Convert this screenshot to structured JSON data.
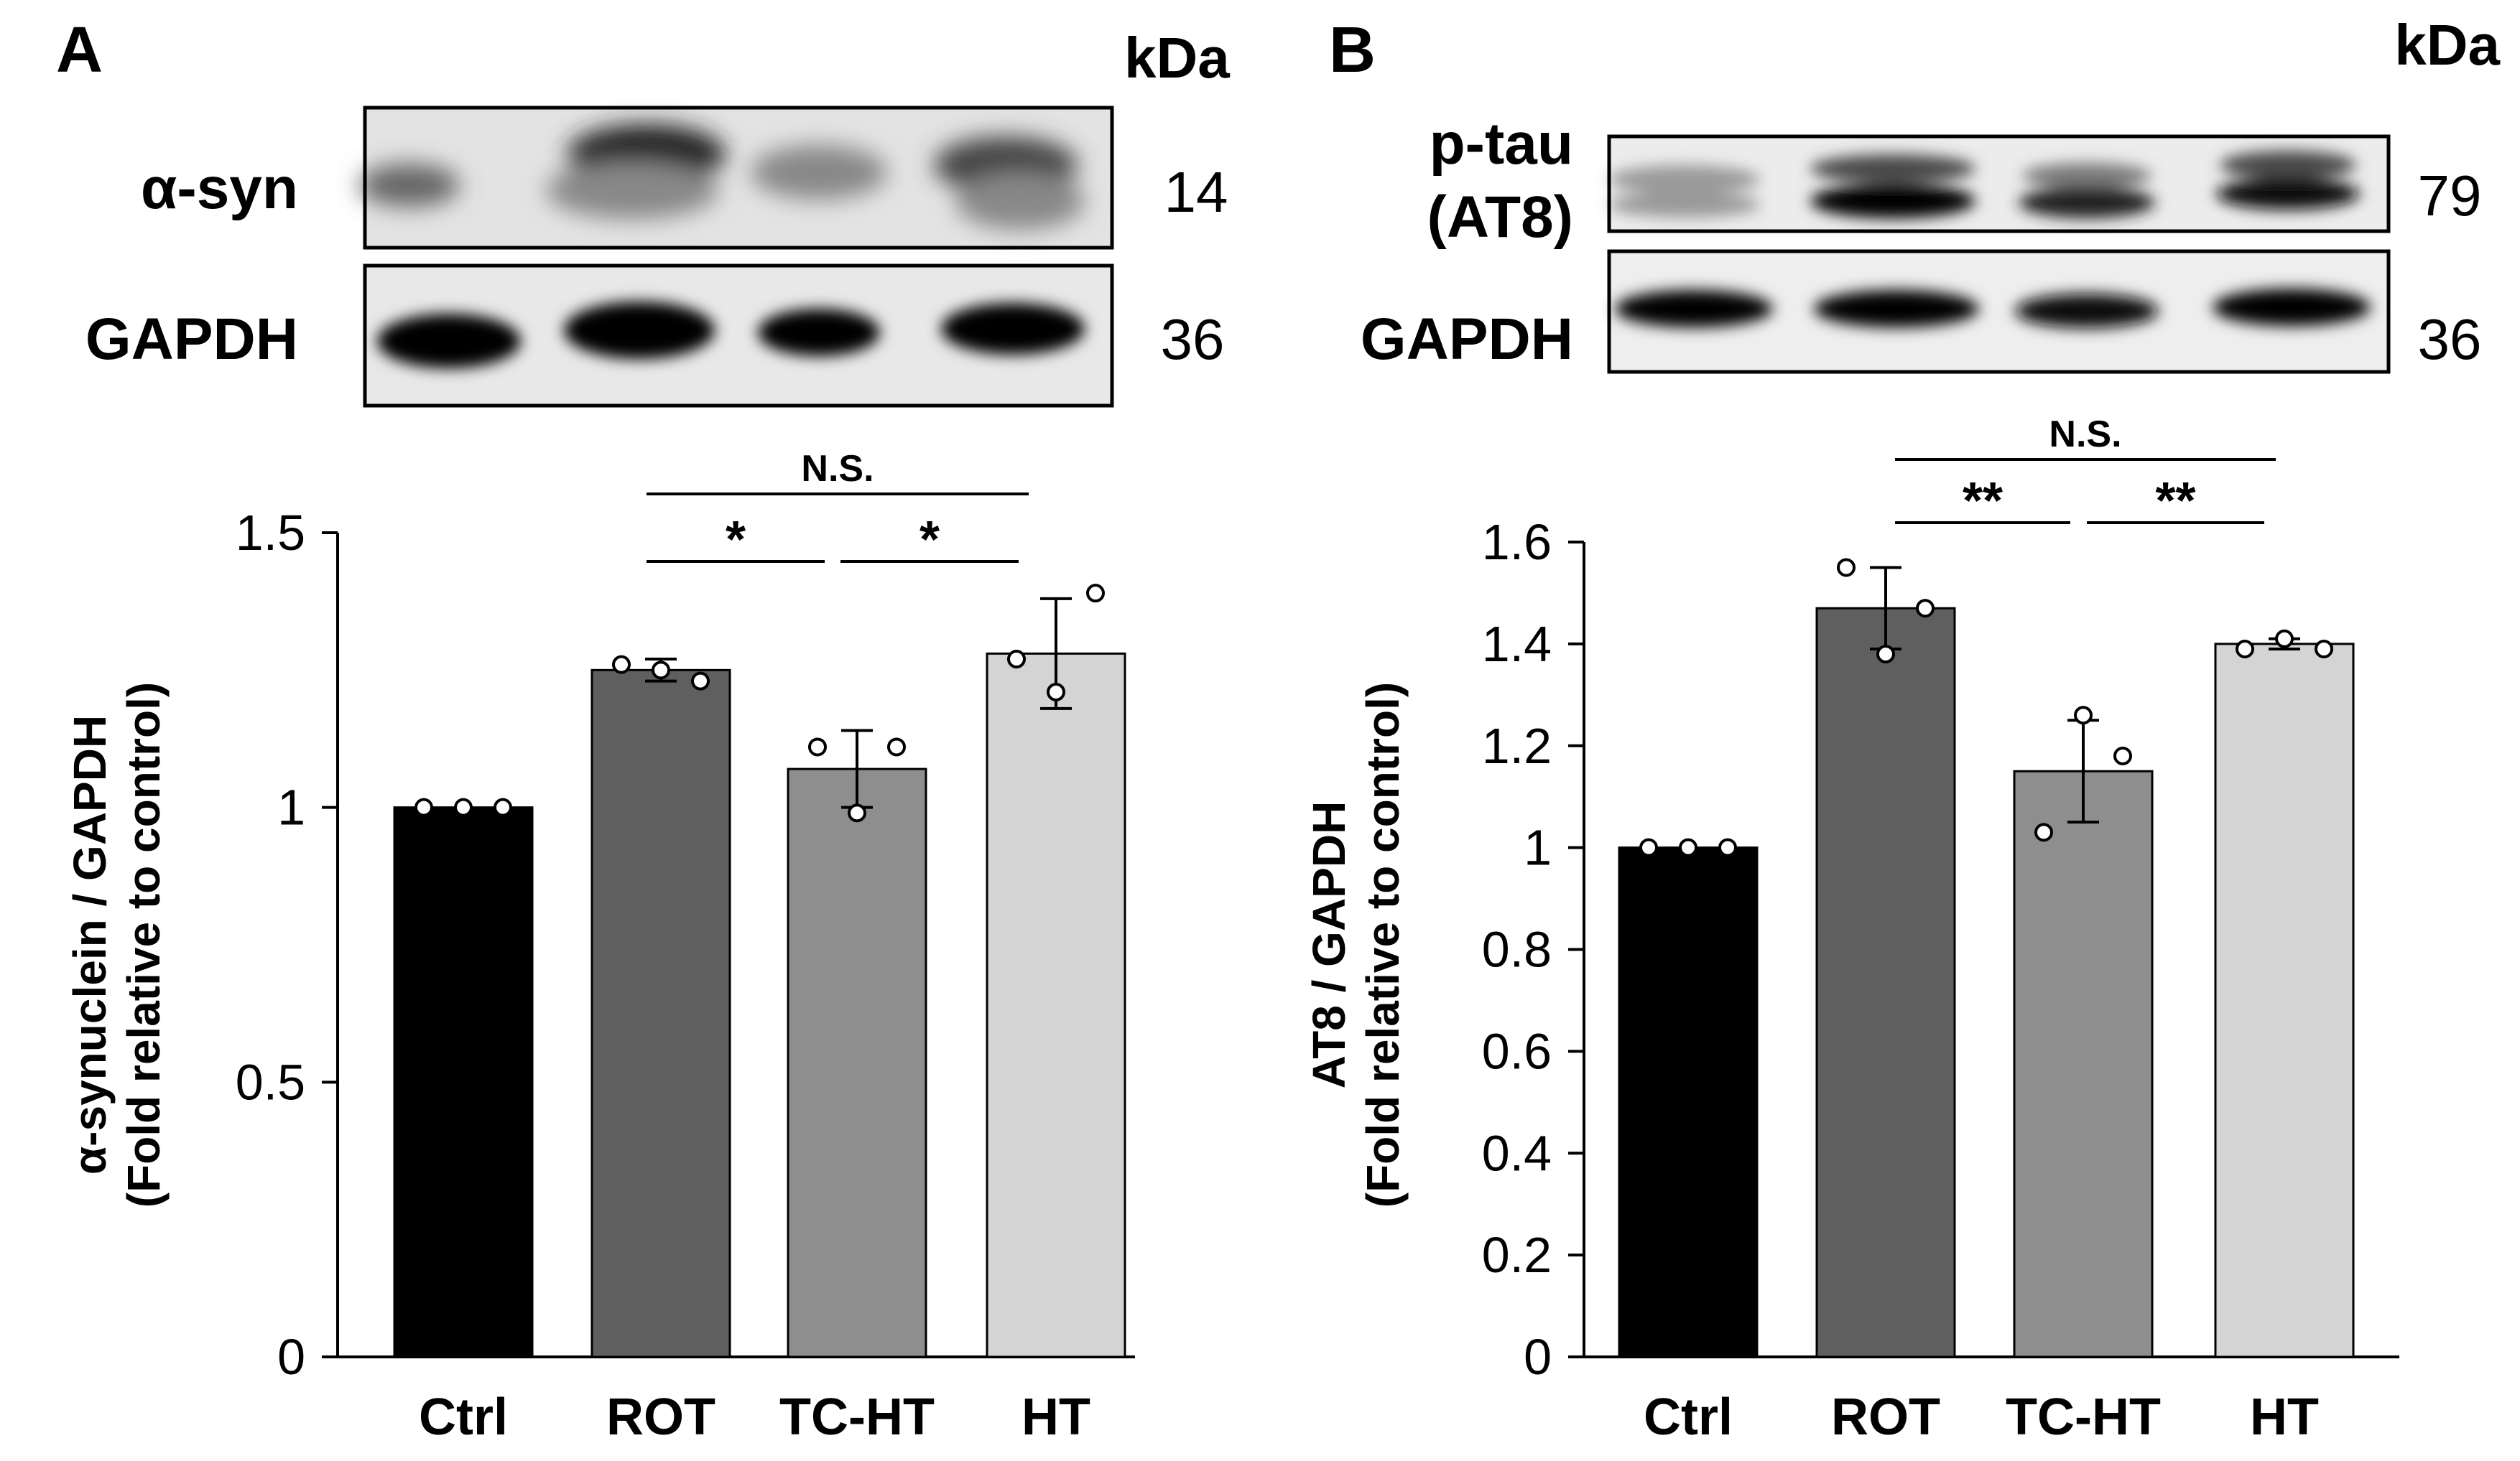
{
  "panels": {
    "A": {
      "letter": "A",
      "kda": "kDa",
      "blots": [
        {
          "label_lines": [
            "α-syn"
          ],
          "mw": "14"
        },
        {
          "label_lines": [
            "GAPDH"
          ],
          "mw": "36"
        }
      ]
    },
    "B": {
      "letter": "B",
      "kda": "kDa",
      "blots": [
        {
          "label_lines": [
            "p-tau",
            "(AT8)"
          ],
          "mw": "79"
        },
        {
          "label_lines": [
            "GAPDH"
          ],
          "mw": "36"
        }
      ]
    }
  },
  "chart_data": [
    {
      "type": "bar",
      "panel": "A",
      "categories": [
        "Ctrl",
        "ROT",
        "TC-HT",
        "HT"
      ],
      "values": [
        1.0,
        1.25,
        1.07,
        1.28
      ],
      "errors": [
        0.0,
        0.02,
        0.07,
        0.1
      ],
      "points": [
        [
          1.0,
          1.0,
          1.0
        ],
        [
          1.26,
          1.25,
          1.23
        ],
        [
          1.11,
          0.99,
          1.11
        ],
        [
          1.27,
          1.21,
          1.39
        ]
      ],
      "bar_colors": [
        "#000000",
        "#5f5f5f",
        "#8e8e8e",
        "#d4d4d4"
      ],
      "ylabel_lines": [
        "α-synuclein / GAPDH",
        "(Fold relative to control)"
      ],
      "ylim": [
        0,
        1.5
      ],
      "yticks": [
        0,
        0.5,
        1,
        1.5
      ],
      "ytick_labels": [
        "0",
        "0.5",
        "1",
        "1.5"
      ],
      "comparisons": [
        {
          "from": 1,
          "to": 2,
          "label": "*"
        },
        {
          "from": 2,
          "to": 3,
          "label": "*"
        },
        {
          "from": 1,
          "to": 3,
          "label": "N.S."
        }
      ],
      "grid": false
    },
    {
      "type": "bar",
      "panel": "B",
      "categories": [
        "Ctrl",
        "ROT",
        "TC-HT",
        "HT"
      ],
      "values": [
        1.0,
        1.47,
        1.15,
        1.4
      ],
      "errors": [
        0.0,
        0.08,
        0.1,
        0.01
      ],
      "points": [
        [
          1.0,
          1.0,
          1.0
        ],
        [
          1.55,
          1.38,
          1.47
        ],
        [
          1.03,
          1.26,
          1.18
        ],
        [
          1.39,
          1.41,
          1.39
        ]
      ],
      "bar_colors": [
        "#000000",
        "#5f5f5f",
        "#8e8e8e",
        "#d4d4d4"
      ],
      "ylabel_lines": [
        "AT8 / GAPDH",
        "(Fold relative to control)"
      ],
      "ylim": [
        0,
        1.6
      ],
      "yticks": [
        0,
        0.2,
        0.4,
        0.6,
        0.8,
        1,
        1.2,
        1.4,
        1.6
      ],
      "ytick_labels": [
        "0",
        "0.2",
        "0.4",
        "0.6",
        "0.8",
        "1",
        "1.2",
        "1.4",
        "1.6"
      ],
      "comparisons": [
        {
          "from": 1,
          "to": 2,
          "label": "**"
        },
        {
          "from": 2,
          "to": 3,
          "label": "**"
        },
        {
          "from": 1,
          "to": 3,
          "label": "N.S."
        }
      ],
      "grid": false
    }
  ]
}
